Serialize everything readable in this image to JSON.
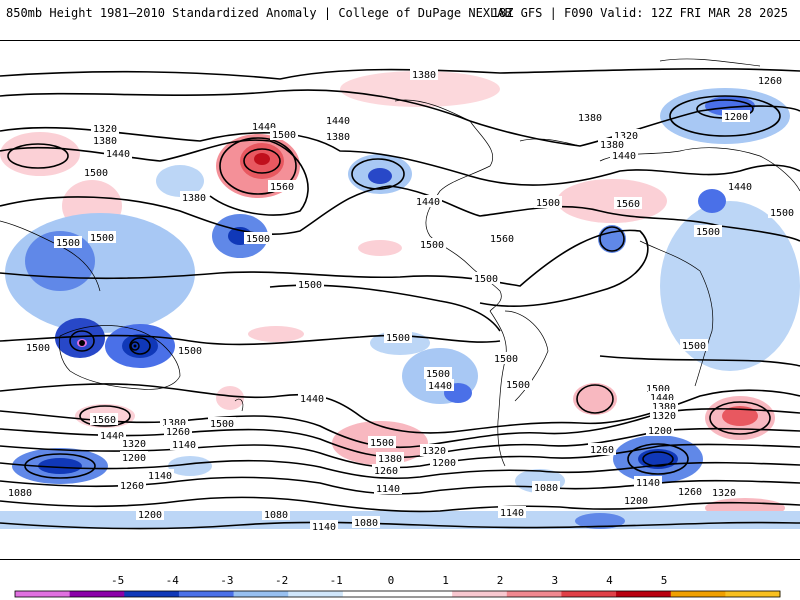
{
  "header": {
    "title": "850mb Height 1981–2010 Standardized Anomaly | College of DuPage NEXLAB",
    "valid": "18Z GFS | F090 Valid: 12Z FRI MAR 28 2025"
  },
  "colorbar": {
    "ticks": [
      "-5",
      "-4",
      "-3",
      "-2",
      "-1",
      "0",
      "1",
      "2",
      "3",
      "4",
      "5"
    ],
    "colors": [
      "#e070e0",
      "#8b00a8",
      "#1038b8",
      "#4a70e8",
      "#98c0f0",
      "#d0e6fa",
      "#ffffff",
      "#ffffff",
      "#f8c8d0",
      "#f08890",
      "#e04048",
      "#b80010",
      "#f0a000",
      "#f8c020"
    ]
  },
  "contour_labels": [
    "1380",
    "1260",
    "1320",
    "1380",
    "1440",
    "1500",
    "1440",
    "1500",
    "1380",
    "1560",
    "1380",
    "1440",
    "1500",
    "1500",
    "1380",
    "1320",
    "1380",
    "1440",
    "1200",
    "1500",
    "1440",
    "1500",
    "1560",
    "1440",
    "1500",
    "1500",
    "1500",
    "1500",
    "1560",
    "1500",
    "1500",
    "1500",
    "1500",
    "1500",
    "1500",
    "1500",
    "1500",
    "1440",
    "1500",
    "1440",
    "1560",
    "1380",
    "1260",
    "1440",
    "1320",
    "1200",
    "1140",
    "1500",
    "1380",
    "1320",
    "1260",
    "1200",
    "1500",
    "1440",
    "1380",
    "1320",
    "1260",
    "1200",
    "1140",
    "1080",
    "1260",
    "1140",
    "1140",
    "1200",
    "1080",
    "1140",
    "1080",
    "1140",
    "1200",
    "1320",
    "1080",
    "1260"
  ]
}
